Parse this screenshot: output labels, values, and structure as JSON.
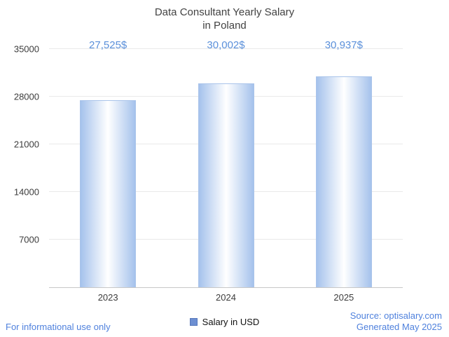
{
  "title": {
    "line1": "Data Consultant Yearly Salary",
    "line2": "in Poland"
  },
  "chart_data": {
    "type": "bar",
    "title": "Data Consultant Yearly Salary in Poland",
    "categories": [
      "2023",
      "2024",
      "2025"
    ],
    "values": [
      27525,
      30002,
      30937
    ],
    "value_labels": [
      "27,525$",
      "30,002$",
      "30,937$"
    ],
    "xlabel": "",
    "ylabel": "",
    "ylim": [
      0,
      35000
    ],
    "yticks": [
      7000,
      14000,
      21000,
      28000,
      35000
    ],
    "ytick_labels": [
      "7000",
      "14000",
      "21000",
      "28000",
      "35000"
    ],
    "grid": true,
    "legend_position": "bottom",
    "series_name": "Salary in USD",
    "bar_gradient_edge": "#a5c2ec",
    "bar_gradient_center": "#ffffff",
    "value_label_color": "#5b90da"
  },
  "legend": {
    "label": "Salary in USD",
    "marker_color": "#6d8fd2"
  },
  "footer": {
    "left": "For informational use only",
    "source": "Source: optisalary.com",
    "generated": "Generated May 2025"
  }
}
